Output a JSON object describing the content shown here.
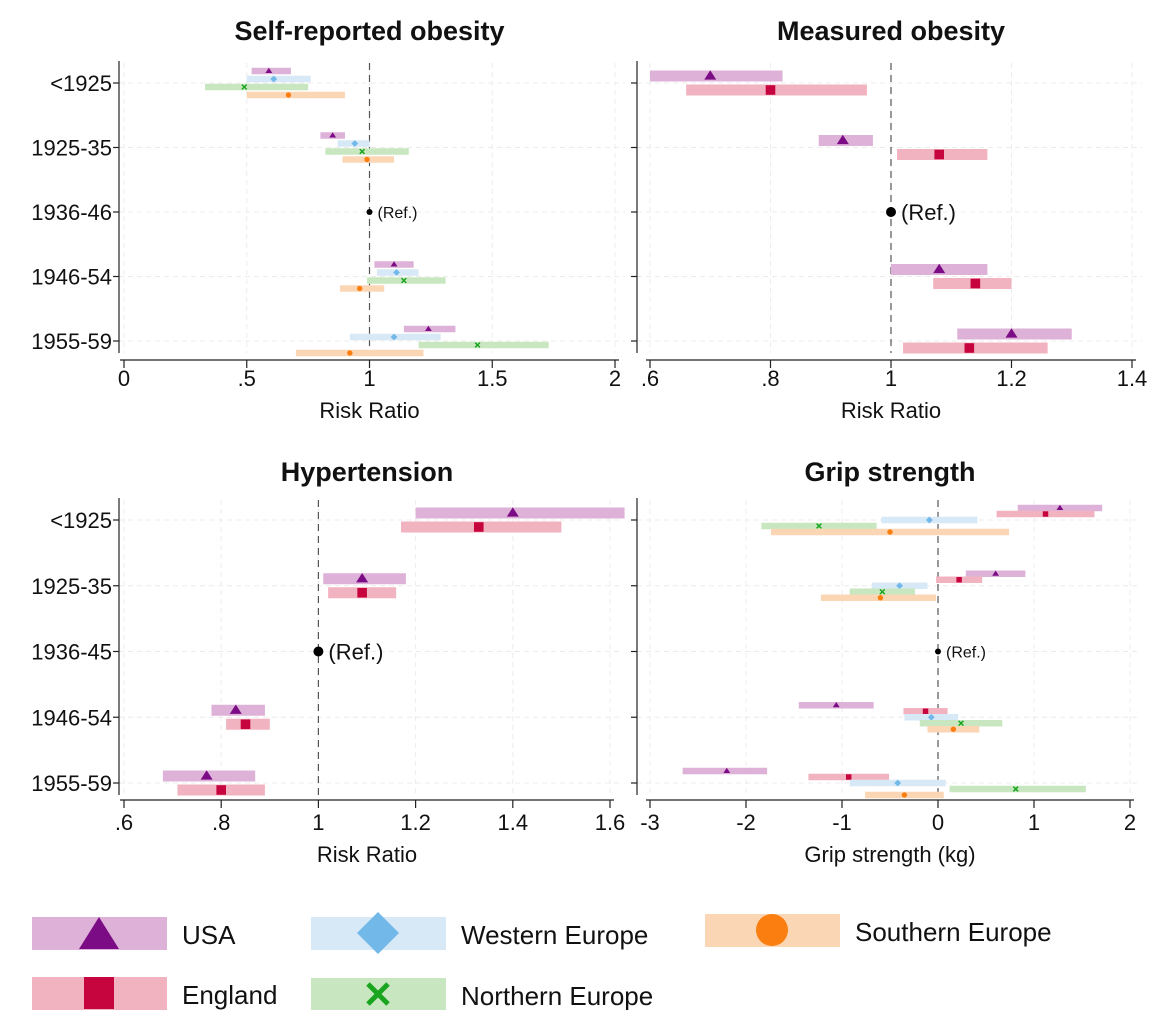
{
  "colors": {
    "USA": {
      "marker": "#7B0C85",
      "band": "#DDB1D8"
    },
    "England": {
      "marker": "#C6053F",
      "band": "#F2B3C0"
    },
    "Western Europe": {
      "marker": "#72B8E8",
      "band": "#D7E8F6"
    },
    "Northern Europe": {
      "marker": "#19A51E",
      "band": "#C8E7C0"
    },
    "Southern Europe": {
      "marker": "#FA7F10",
      "band": "#FBD6B5"
    }
  },
  "legend": {
    "items": [
      {
        "name": "USA",
        "label": "USA",
        "marker": "triangle"
      },
      {
        "name": "Western Europe",
        "label": "Western Europe",
        "marker": "diamond"
      },
      {
        "name": "Southern Europe",
        "label": "Southern Europe",
        "marker": "circle"
      },
      {
        "name": "England",
        "label": "England",
        "marker": "square"
      },
      {
        "name": "Northern Europe",
        "label": "Northern Europe",
        "marker": "x"
      }
    ]
  },
  "chart_data": [
    {
      "type": "forest",
      "title": "Self-reported obesity",
      "xlabel": "Risk Ratio",
      "xlim": [
        0,
        2
      ],
      "xticks": [
        0,
        0.5,
        1,
        1.5,
        2
      ],
      "xtick_labels": [
        "0",
        ".5",
        "1",
        "1.5",
        "2"
      ],
      "reference_line": 1,
      "grid": true,
      "categories": [
        "<1925",
        "1925-35",
        "1936-46",
        "1946-54",
        "1955-59"
      ],
      "reference": {
        "category": "1936-46",
        "value": 1,
        "label": "(Ref.)"
      },
      "series": [
        {
          "name": "USA",
          "points": [
            {
              "category": "<1925",
              "estimate": 0.59,
              "lower": 0.52,
              "upper": 0.68
            },
            {
              "category": "1925-35",
              "estimate": 0.85,
              "lower": 0.8,
              "upper": 0.9
            },
            {
              "category": "1946-54",
              "estimate": 1.1,
              "lower": 1.02,
              "upper": 1.18
            },
            {
              "category": "1955-59",
              "estimate": 1.24,
              "lower": 1.14,
              "upper": 1.35
            }
          ]
        },
        {
          "name": "Western Europe",
          "points": [
            {
              "category": "<1925",
              "estimate": 0.61,
              "lower": 0.5,
              "upper": 0.76
            },
            {
              "category": "1925-35",
              "estimate": 0.94,
              "lower": 0.87,
              "upper": 1.0
            },
            {
              "category": "1946-54",
              "estimate": 1.11,
              "lower": 1.03,
              "upper": 1.2
            },
            {
              "category": "1955-59",
              "estimate": 1.1,
              "lower": 0.92,
              "upper": 1.29
            }
          ]
        },
        {
          "name": "Northern Europe",
          "points": [
            {
              "category": "<1925",
              "estimate": 0.49,
              "lower": 0.33,
              "upper": 0.75
            },
            {
              "category": "1925-35",
              "estimate": 0.97,
              "lower": 0.82,
              "upper": 1.16
            },
            {
              "category": "1946-54",
              "estimate": 1.14,
              "lower": 0.99,
              "upper": 1.31
            },
            {
              "category": "1955-59",
              "estimate": 1.44,
              "lower": 1.2,
              "upper": 1.73
            }
          ]
        },
        {
          "name": "Southern Europe",
          "points": [
            {
              "category": "<1925",
              "estimate": 0.67,
              "lower": 0.5,
              "upper": 0.9
            },
            {
              "category": "1925-35",
              "estimate": 0.99,
              "lower": 0.89,
              "upper": 1.1
            },
            {
              "category": "1946-54",
              "estimate": 0.96,
              "lower": 0.88,
              "upper": 1.06
            },
            {
              "category": "1955-59",
              "estimate": 0.92,
              "lower": 0.7,
              "upper": 1.22
            }
          ]
        }
      ]
    },
    {
      "type": "forest",
      "title": "Measured obesity",
      "xlabel": "Risk Ratio",
      "xlim": [
        0.6,
        1.4
      ],
      "xticks": [
        0.6,
        0.8,
        1,
        1.2,
        1.4
      ],
      "xtick_labels": [
        ".6",
        ".8",
        "1",
        "1.2",
        "1.4"
      ],
      "reference_line": 1,
      "grid": true,
      "categories": [
        "<1925",
        "1925-35",
        "1936-46",
        "1946-54",
        "1955-59"
      ],
      "reference": {
        "category": "1936-46",
        "value": 1,
        "label": "(Ref.)"
      },
      "series": [
        {
          "name": "USA",
          "points": [
            {
              "category": "<1925",
              "estimate": 0.7,
              "lower": 0.6,
              "upper": 0.82
            },
            {
              "category": "1925-35",
              "estimate": 0.92,
              "lower": 0.88,
              "upper": 0.97
            },
            {
              "category": "1946-54",
              "estimate": 1.08,
              "lower": 1.0,
              "upper": 1.16
            },
            {
              "category": "1955-59",
              "estimate": 1.2,
              "lower": 1.11,
              "upper": 1.3
            }
          ]
        },
        {
          "name": "England",
          "points": [
            {
              "category": "<1925",
              "estimate": 0.8,
              "lower": 0.66,
              "upper": 0.96
            },
            {
              "category": "1925-35",
              "estimate": 1.08,
              "lower": 1.01,
              "upper": 1.16
            },
            {
              "category": "1946-54",
              "estimate": 1.14,
              "lower": 1.07,
              "upper": 1.2
            },
            {
              "category": "1955-59",
              "estimate": 1.13,
              "lower": 1.02,
              "upper": 1.26
            }
          ]
        }
      ]
    },
    {
      "type": "forest",
      "title": "Hypertension",
      "xlabel": "Risk Ratio",
      "xlim": [
        0.6,
        1.6
      ],
      "xticks": [
        0.6,
        0.8,
        1,
        1.2,
        1.4,
        1.6
      ],
      "xtick_labels": [
        ".6",
        ".8",
        "1",
        "1.2",
        "1.4",
        "1.6"
      ],
      "reference_line": 1,
      "grid": true,
      "categories": [
        "<1925",
        "1925-35",
        "1936-45",
        "1946-54",
        "1955-59"
      ],
      "reference": {
        "category": "1936-45",
        "value": 1,
        "label": "(Ref.)"
      },
      "series": [
        {
          "name": "USA",
          "points": [
            {
              "category": "<1925",
              "estimate": 1.4,
              "lower": 1.2,
              "upper": 1.63
            },
            {
              "category": "1925-35",
              "estimate": 1.09,
              "lower": 1.01,
              "upper": 1.18
            },
            {
              "category": "1946-54",
              "estimate": 0.83,
              "lower": 0.78,
              "upper": 0.89
            },
            {
              "category": "1955-59",
              "estimate": 0.77,
              "lower": 0.68,
              "upper": 0.87
            }
          ]
        },
        {
          "name": "England",
          "points": [
            {
              "category": "<1925",
              "estimate": 1.33,
              "lower": 1.17,
              "upper": 1.5
            },
            {
              "category": "1925-35",
              "estimate": 1.09,
              "lower": 1.02,
              "upper": 1.16
            },
            {
              "category": "1946-54",
              "estimate": 0.85,
              "lower": 0.81,
              "upper": 0.9
            },
            {
              "category": "1955-59",
              "estimate": 0.8,
              "lower": 0.71,
              "upper": 0.89
            }
          ]
        }
      ]
    },
    {
      "type": "forest",
      "title": "Grip strength",
      "xlabel": "Grip strength (kg)",
      "xlim": [
        -3,
        2
      ],
      "xticks": [
        -3,
        -2,
        -1,
        0,
        1,
        2
      ],
      "xtick_labels": [
        "-3",
        "-2",
        "-1",
        "0",
        "1",
        "2"
      ],
      "reference_line": 0,
      "grid": true,
      "categories": [
        "<1925",
        "1925-35",
        "1936-45",
        "1946-54",
        "1955-59"
      ],
      "reference": {
        "category": "1936-45",
        "value": 0,
        "label": "(Ref.)"
      },
      "series": [
        {
          "name": "USA",
          "points": [
            {
              "category": "<1925",
              "estimate": 1.27,
              "lower": 0.83,
              "upper": 1.71
            },
            {
              "category": "1925-35",
              "estimate": 0.6,
              "lower": 0.29,
              "upper": 0.91
            },
            {
              "category": "1946-54",
              "estimate": -1.06,
              "lower": -1.45,
              "upper": -0.67
            },
            {
              "category": "1955-59",
              "estimate": -2.2,
              "lower": -2.66,
              "upper": -1.78
            }
          ]
        },
        {
          "name": "England",
          "points": [
            {
              "category": "<1925",
              "estimate": 1.12,
              "lower": 0.61,
              "upper": 1.63
            },
            {
              "category": "1925-35",
              "estimate": 0.22,
              "lower": -0.02,
              "upper": 0.46
            },
            {
              "category": "1946-54",
              "estimate": -0.13,
              "lower": -0.36,
              "upper": 0.1
            },
            {
              "category": "1955-59",
              "estimate": -0.93,
              "lower": -1.35,
              "upper": -0.51
            }
          ]
        },
        {
          "name": "Western Europe",
          "points": [
            {
              "category": "<1925",
              "estimate": -0.09,
              "lower": -0.59,
              "upper": 0.41
            },
            {
              "category": "1925-35",
              "estimate": -0.4,
              "lower": -0.69,
              "upper": -0.11
            },
            {
              "category": "1946-54",
              "estimate": -0.07,
              "lower": -0.35,
              "upper": 0.21
            },
            {
              "category": "1955-59",
              "estimate": -0.42,
              "lower": -0.92,
              "upper": 0.08
            }
          ]
        },
        {
          "name": "Northern Europe",
          "points": [
            {
              "category": "<1925",
              "estimate": -1.24,
              "lower": -1.84,
              "upper": -0.64
            },
            {
              "category": "1925-35",
              "estimate": -0.58,
              "lower": -0.92,
              "upper": -0.24
            },
            {
              "category": "1946-54",
              "estimate": 0.24,
              "lower": -0.19,
              "upper": 0.67
            },
            {
              "category": "1955-59",
              "estimate": 0.81,
              "lower": 0.12,
              "upper": 1.54
            }
          ]
        },
        {
          "name": "Southern Europe",
          "points": [
            {
              "category": "<1925",
              "estimate": -0.5,
              "lower": -1.74,
              "upper": 0.74
            },
            {
              "category": "1925-35",
              "estimate": -0.6,
              "lower": -1.22,
              "upper": -0.02
            },
            {
              "category": "1946-54",
              "estimate": 0.16,
              "lower": -0.11,
              "upper": 0.43
            },
            {
              "category": "1955-59",
              "estimate": -0.35,
              "lower": -0.76,
              "upper": 0.06
            }
          ]
        }
      ]
    }
  ]
}
